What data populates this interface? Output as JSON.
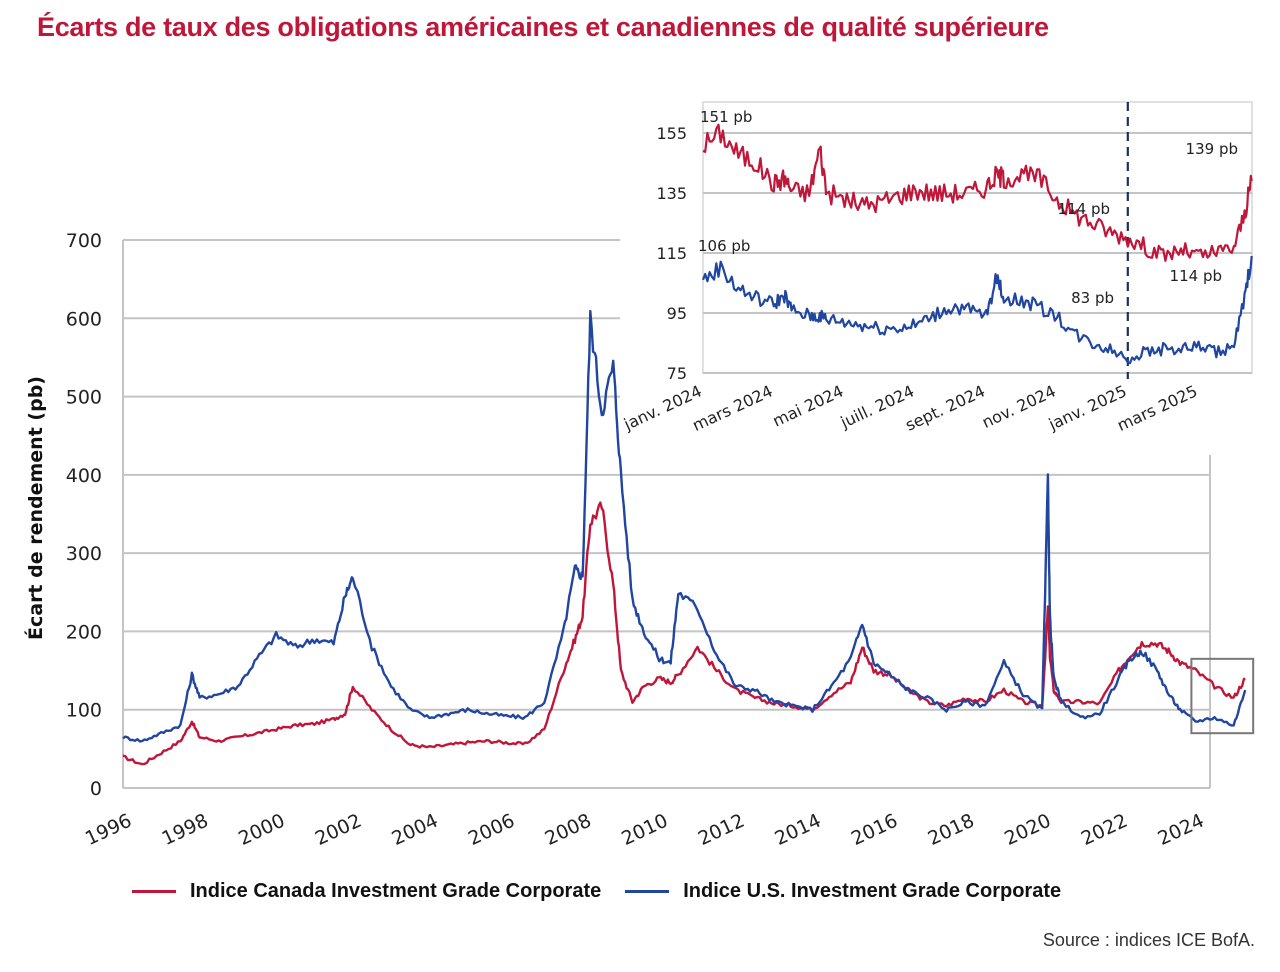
{
  "title": "Écarts de taux des obligations américaines et canadiennes de qualité supérieure",
  "source": "Source : indices ICE BofA.",
  "legend": [
    {
      "label": "Indice Canada Investment Grade Corporate",
      "color": "#c0163a"
    },
    {
      "label": "Indice U.S. Investment Grade Corporate",
      "color": "#2146a0"
    }
  ],
  "chart_data": [
    {
      "type": "line",
      "title": "Écarts de taux des obligations américaines et canadiennes de qualité supérieure",
      "xlabel": "",
      "ylabel": "Écart de rendement (pb)",
      "ylim": [
        0,
        700
      ],
      "xlim": [
        1996,
        2025.3
      ],
      "yticks": [
        0,
        100,
        200,
        300,
        400,
        500,
        600,
        700
      ],
      "xtick_labels": [
        "1996",
        "1998",
        "2000",
        "2002",
        "2004",
        "2006",
        "2008",
        "2010",
        "2012",
        "2014",
        "2016",
        "2018",
        "2020",
        "2022",
        "2024"
      ],
      "grid": true,
      "legend_position": "bottom",
      "highlight_box": {
        "x": [
          2024.0,
          2025.3
        ],
        "y": [
          70,
          165
        ],
        "note": "zoomed in inset"
      },
      "x": [
        1996.0,
        1996.5,
        1997.0,
        1997.5,
        1997.8,
        1998.0,
        1998.5,
        1999.0,
        1999.5,
        2000.0,
        2000.5,
        2001.0,
        2001.5,
        2001.8,
        2002.0,
        2002.5,
        2003.0,
        2003.5,
        2004.0,
        2004.5,
        2005.0,
        2005.5,
        2006.0,
        2006.5,
        2007.0,
        2007.5,
        2007.8,
        2008.0,
        2008.2,
        2008.5,
        2008.8,
        2009.0,
        2009.3,
        2009.6,
        2010.0,
        2010.3,
        2010.5,
        2011.0,
        2011.5,
        2012.0,
        2012.5,
        2013.0,
        2013.5,
        2014.0,
        2014.5,
        2015.0,
        2015.3,
        2015.6,
        2016.0,
        2016.5,
        2017.0,
        2017.5,
        2018.0,
        2018.5,
        2019.0,
        2019.5,
        2020.0,
        2020.15,
        2020.2,
        2020.3,
        2020.5,
        2021.0,
        2021.5,
        2022.0,
        2022.3,
        2022.6,
        2023.0,
        2023.3,
        2023.6,
        2024.0,
        2024.5,
        2025.0,
        2025.3
      ],
      "series": [
        {
          "name": "Indice Canada Investment Grade Corporate",
          "color": "#c0163a",
          "values": [
            40,
            30,
            45,
            60,
            85,
            65,
            60,
            65,
            70,
            75,
            80,
            82,
            88,
            95,
            130,
            100,
            75,
            55,
            52,
            55,
            58,
            60,
            58,
            56,
            75,
            150,
            190,
            220,
            340,
            360,
            260,
            150,
            110,
            130,
            140,
            135,
            145,
            180,
            150,
            125,
            115,
            108,
            105,
            100,
            120,
            135,
            180,
            150,
            145,
            125,
            110,
            105,
            115,
            110,
            125,
            110,
            105,
            230,
            170,
            125,
            110,
            110,
            108,
            150,
            170,
            185,
            185,
            175,
            160,
            150,
            130,
            115,
            140
          ]
        },
        {
          "name": "Indice U.S. Investment Grade Corporate",
          "color": "#2146a0",
          "values": [
            65,
            60,
            70,
            80,
            145,
            115,
            120,
            130,
            165,
            195,
            180,
            190,
            185,
            245,
            270,
            180,
            130,
            100,
            90,
            95,
            100,
            95,
            92,
            90,
            110,
            200,
            280,
            270,
            600,
            480,
            540,
            400,
            240,
            200,
            165,
            160,
            250,
            230,
            170,
            130,
            125,
            110,
            105,
            100,
            130,
            165,
            210,
            160,
            145,
            125,
            115,
            100,
            110,
            105,
            160,
            120,
            100,
            395,
            220,
            140,
            110,
            90,
            95,
            140,
            165,
            175,
            150,
            120,
            100,
            85,
            90,
            80,
            125
          ]
        }
      ]
    },
    {
      "type": "line",
      "title": "",
      "ylim": [
        75,
        165
      ],
      "yticks": [
        75,
        95,
        115,
        135,
        155
      ],
      "xtick_labels": [
        "janv. 2024",
        "mars 2024",
        "mai 2024",
        "juill. 2024",
        "sept. 2024",
        "nov. 2024",
        "janv. 2025",
        "mars 2025"
      ],
      "x_months": [
        0,
        0.5,
        1,
        1.5,
        2,
        2.3,
        2.5,
        3,
        3.3,
        3.5,
        4,
        4.5,
        5,
        5.5,
        6,
        6.5,
        7,
        7.5,
        8,
        8.3,
        8.5,
        9,
        9.5,
        10,
        10.5,
        11,
        11.5,
        12,
        12.5,
        13,
        13.5,
        14,
        14.5,
        15,
        15.3,
        15.5
      ],
      "vertical_marker": {
        "x_month": 12,
        "style": "dashed",
        "label_pos": "janv. 2025"
      },
      "annotations": [
        "151 pb",
        "106 pb",
        "114 pb",
        "83 pb",
        "139 pb",
        "114 pb"
      ],
      "series": [
        {
          "name": "Indice Canada Investment Grade Corporate",
          "color": "#c0163a",
          "values": [
            151,
            155,
            148,
            145,
            138,
            140,
            136,
            135,
            150,
            135,
            133,
            131,
            132,
            134,
            136,
            135,
            135,
            135,
            137,
            141,
            140,
            141,
            140,
            133,
            128,
            125,
            122,
            120,
            117,
            114,
            116,
            114,
            115,
            117,
            128,
            139
          ]
        },
        {
          "name": "Indice U.S. Investment Grade Corporate",
          "color": "#2146a0",
          "values": [
            106,
            110,
            103,
            100,
            98,
            101,
            96,
            94,
            94,
            93,
            92,
            91,
            90,
            90,
            91,
            94,
            97,
            96,
            94,
            107,
            100,
            99,
            97,
            94,
            88,
            85,
            83,
            80,
            82,
            83,
            83,
            84,
            82,
            84,
            100,
            114
          ]
        }
      ]
    }
  ]
}
